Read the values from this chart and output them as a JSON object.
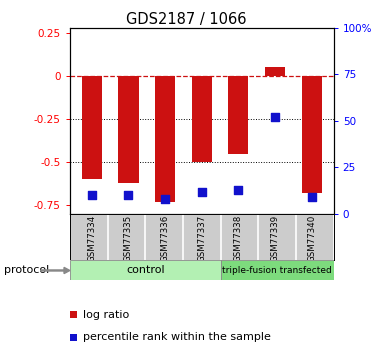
{
  "title": "GDS2187 / 1066",
  "samples": [
    "GSM77334",
    "GSM77335",
    "GSM77336",
    "GSM77337",
    "GSM77338",
    "GSM77339",
    "GSM77340"
  ],
  "log_ratio": [
    -0.6,
    -0.62,
    -0.73,
    -0.5,
    -0.45,
    0.05,
    -0.68
  ],
  "percentile_rank_pct": [
    10,
    10,
    8,
    12,
    13,
    52,
    9
  ],
  "bar_color": "#cc1111",
  "dot_color": "#1111cc",
  "ylim_left": [
    -0.8,
    0.28
  ],
  "ylim_right": [
    0,
    100
  ],
  "left_yticks": [
    -0.75,
    -0.5,
    -0.25,
    0.0,
    0.25
  ],
  "left_yticklabels": [
    "-0.75",
    "-0.5",
    "-0.25",
    "0",
    "0.25"
  ],
  "right_yticks": [
    0,
    25,
    50,
    75,
    100
  ],
  "right_yticklabels": [
    "0",
    "25",
    "50",
    "75",
    "100%"
  ],
  "ctrl_count": 4,
  "group_label_ctrl": "control",
  "group_label_triple": "triple-fusion transfected",
  "group_color_ctrl": "#b3f0b3",
  "group_color_triple": "#7ddb7d",
  "xlabels_bg": "#cccccc",
  "protocol_label": "protocol",
  "legend_red_label": "log ratio",
  "legend_blue_label": "percentile rank within the sample",
  "background": "#ffffff"
}
